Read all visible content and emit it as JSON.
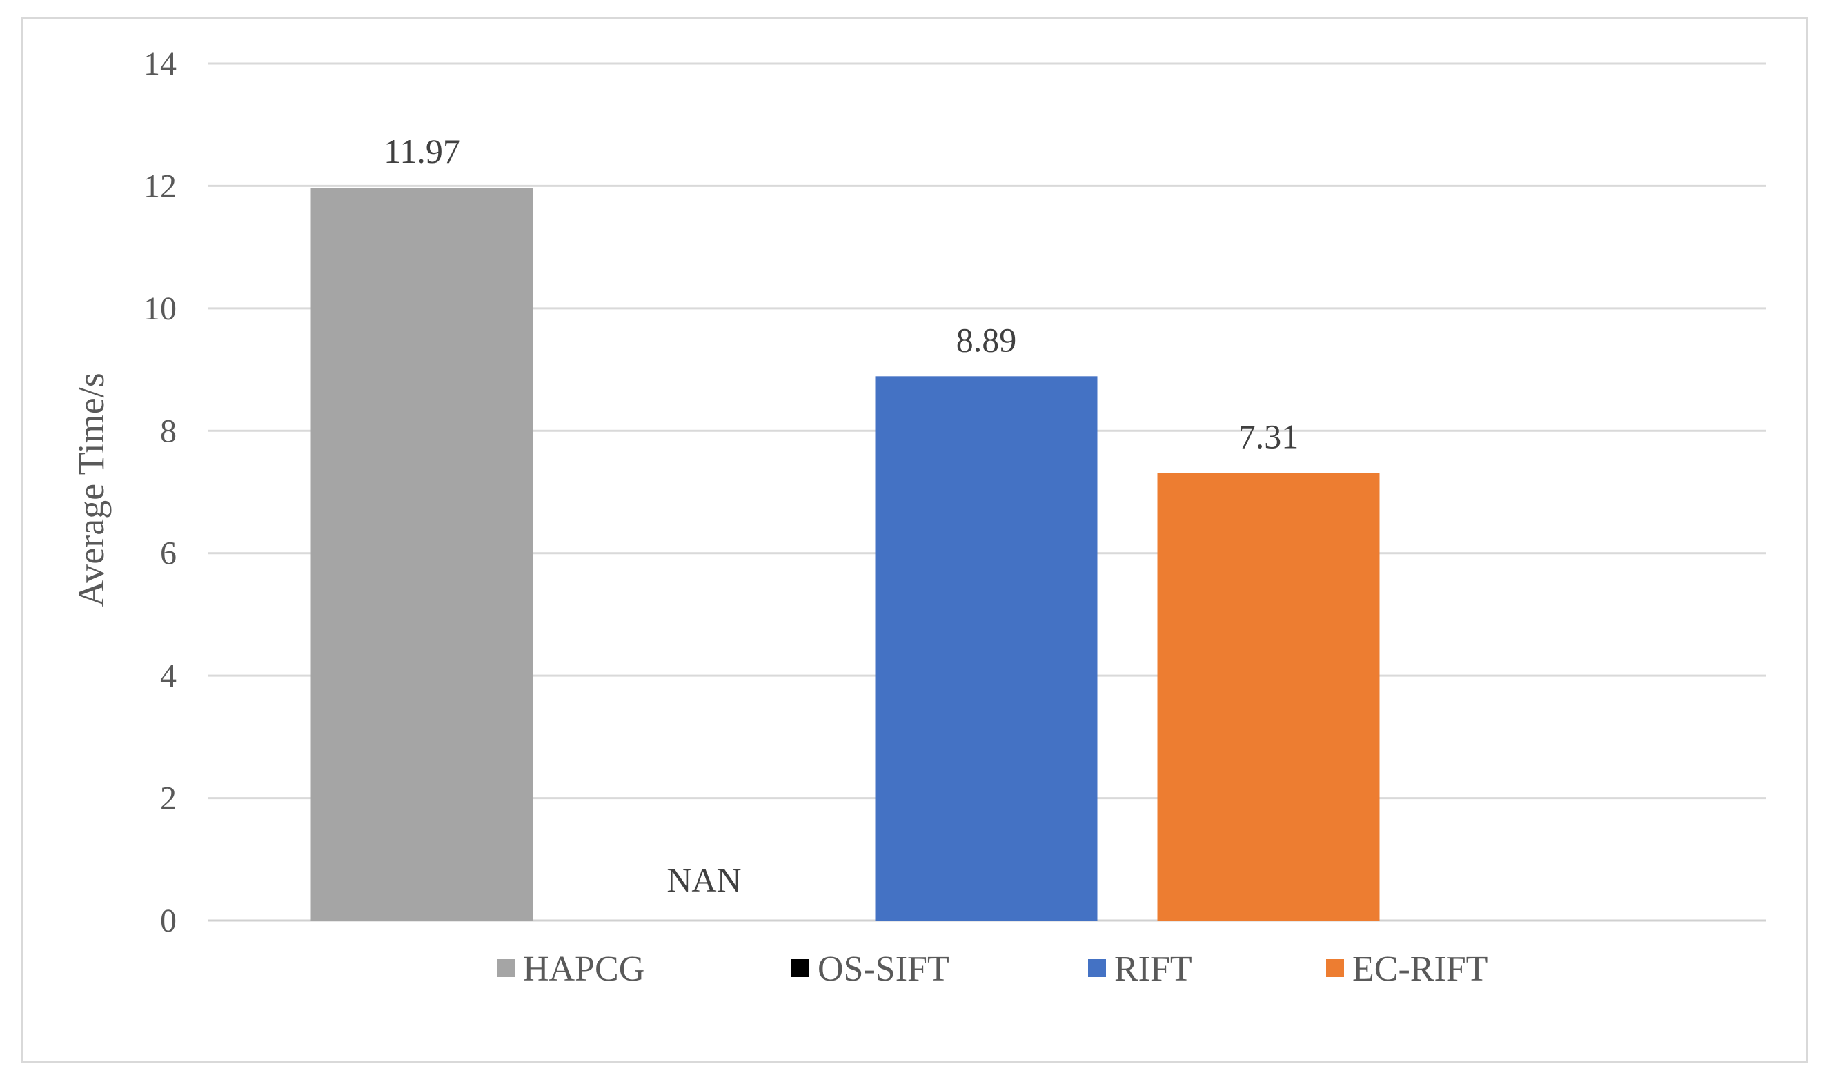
{
  "chart_data": {
    "type": "bar",
    "title": "",
    "xlabel": "",
    "ylabel": "Average Time/s",
    "ylim": [
      0,
      14
    ],
    "yticks": [
      0,
      2,
      4,
      6,
      8,
      10,
      12,
      14
    ],
    "grid": true,
    "legend_position": "bottom",
    "series": [
      {
        "name": "HAPCG",
        "value": 11.97,
        "label": "11.97",
        "color": "#a5a5a5"
      },
      {
        "name": "OS-SIFT",
        "value": 0,
        "label": "NAN",
        "color": "#000000"
      },
      {
        "name": "RIFT",
        "value": 8.89,
        "label": "8.89",
        "color": "#4472c4"
      },
      {
        "name": "EC-RIFT",
        "value": 7.31,
        "label": "7.31",
        "color": "#ed7d31"
      }
    ]
  }
}
